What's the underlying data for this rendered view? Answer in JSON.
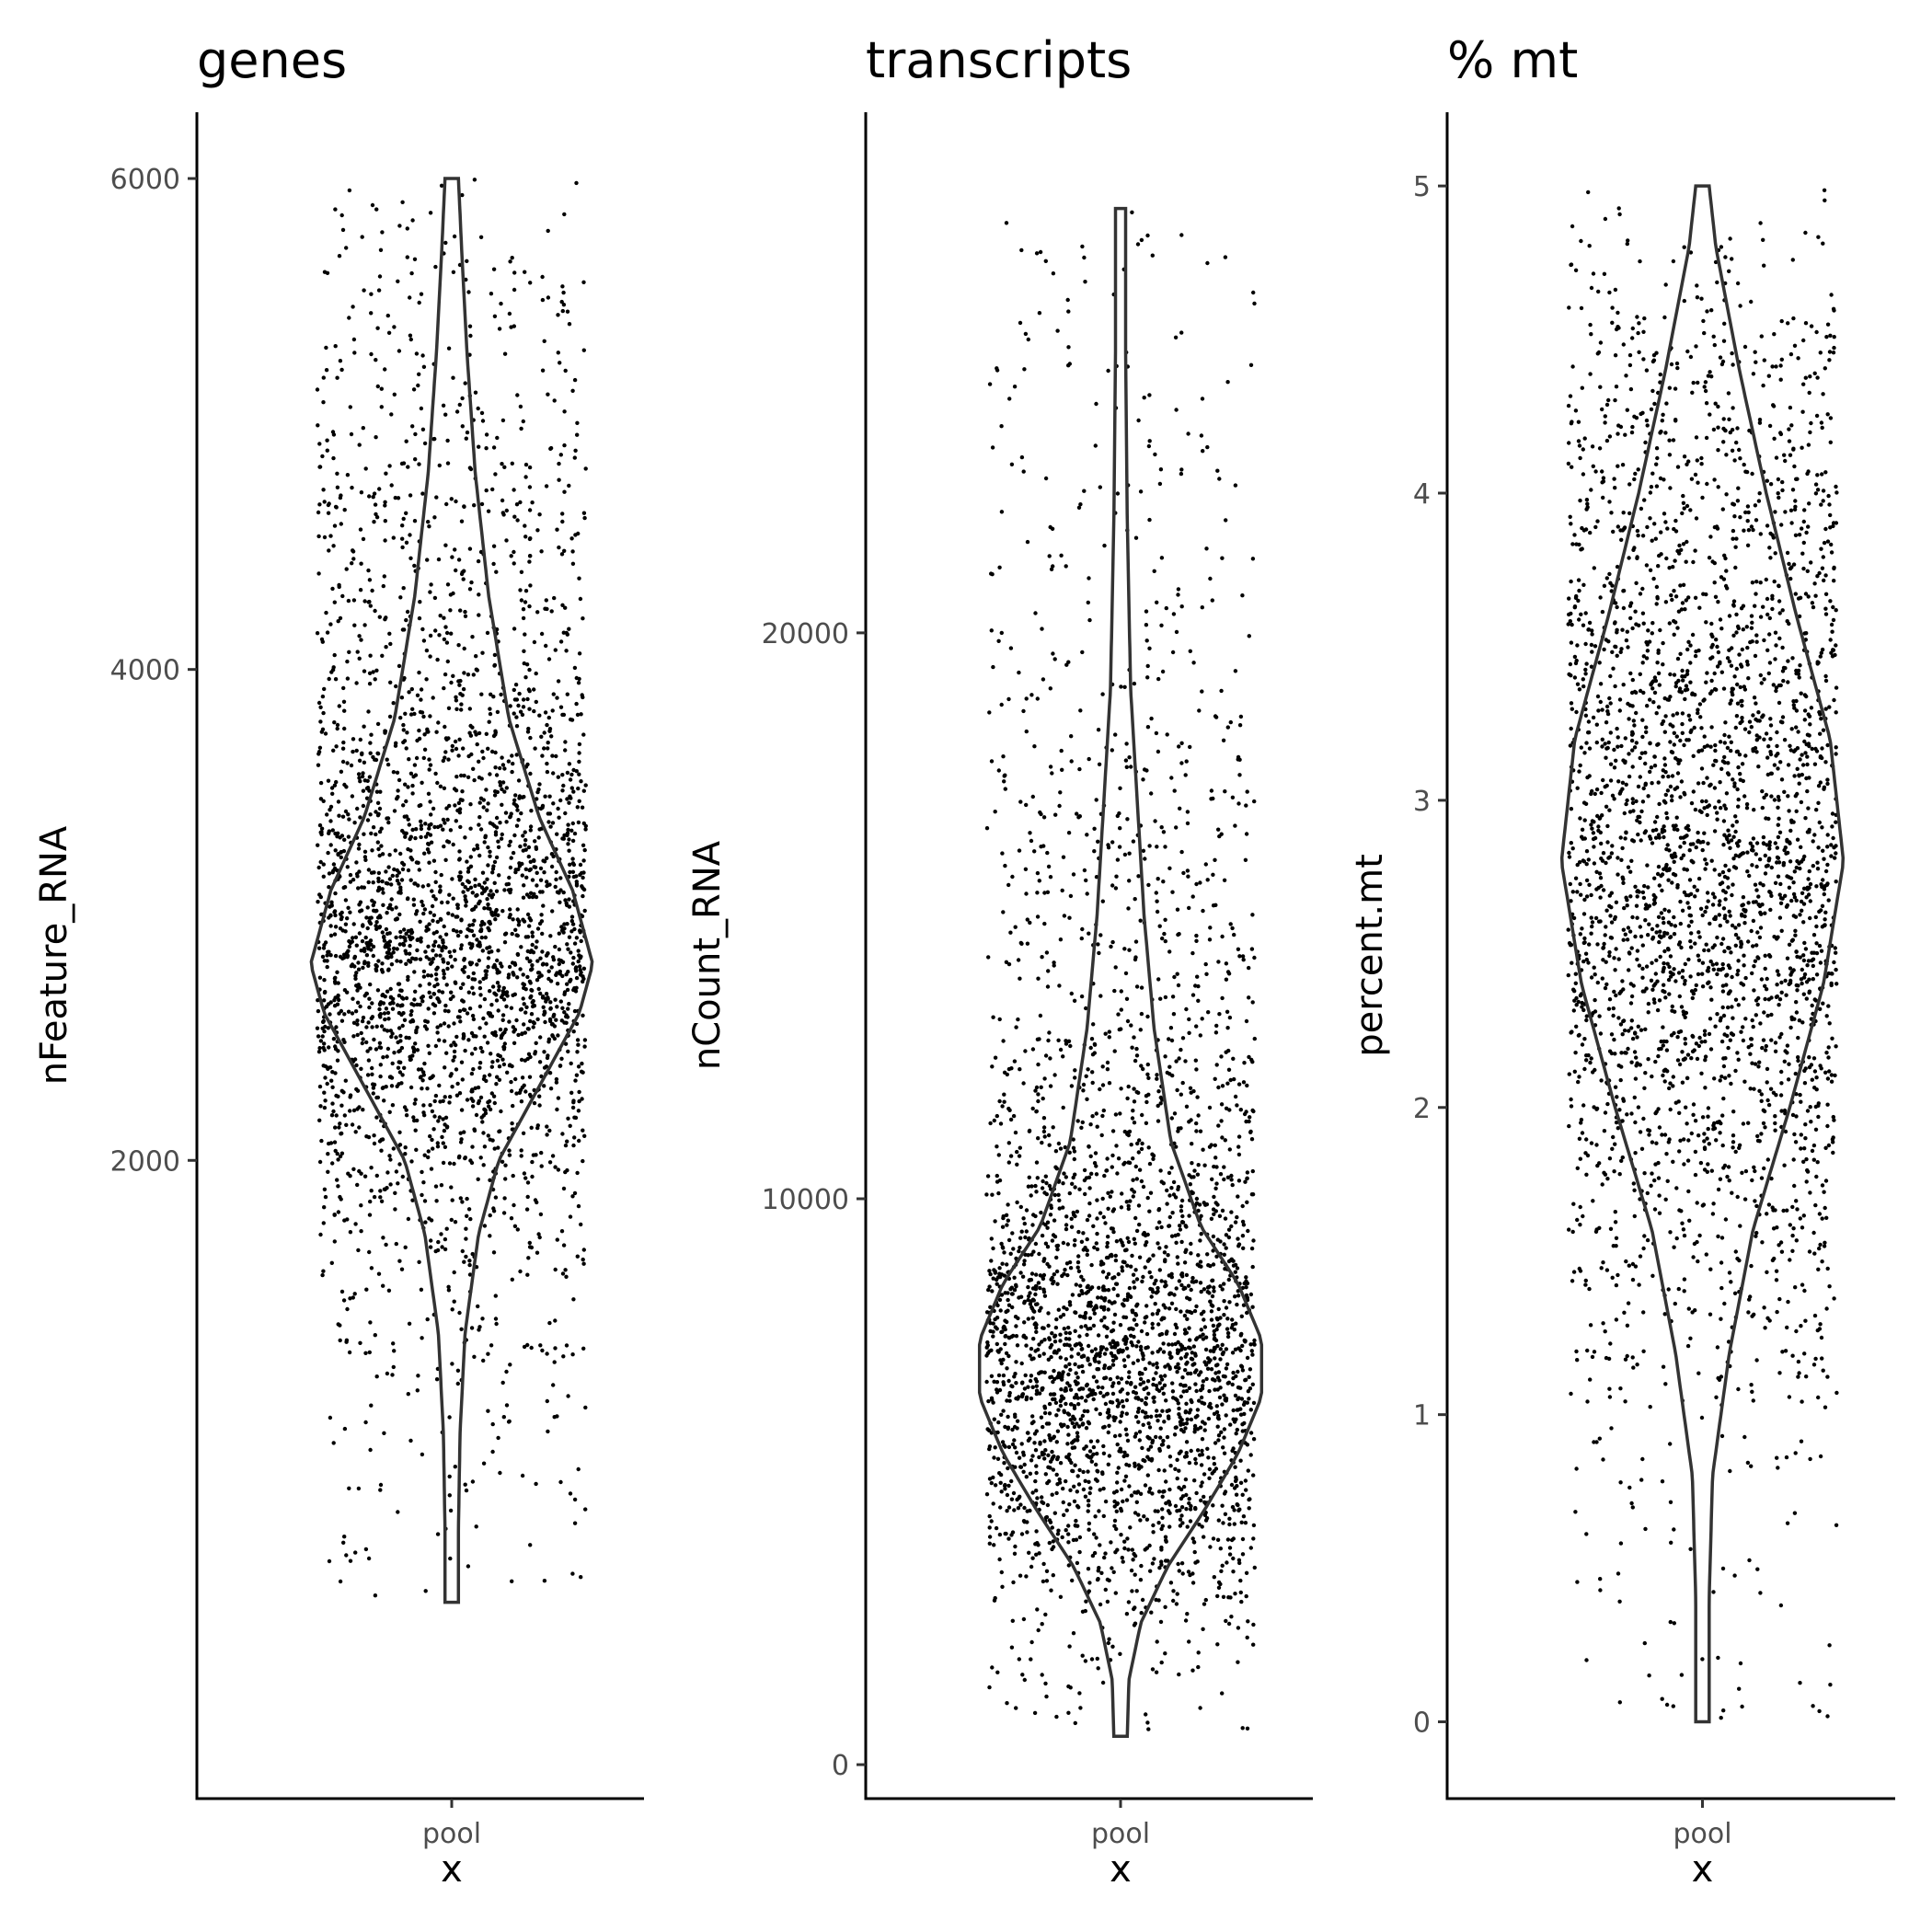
{
  "chart_data": [
    {
      "type": "violin",
      "title": "genes",
      "xlabel": "x",
      "ylabel": "nFeature_RNA",
      "categories": [
        "pool"
      ],
      "yticks": [
        2000,
        4000,
        6000
      ],
      "ylim": [
        -600,
        6270
      ],
      "data_range": [
        200,
        6000
      ],
      "points_shown": true,
      "approx_n_points": 3000,
      "density_profile": [
        {
          "y": 200,
          "half_width": 0.02
        },
        {
          "y": 500,
          "half_width": 0.02
        },
        {
          "y": 900,
          "half_width": 0.025
        },
        {
          "y": 1300,
          "half_width": 0.04
        },
        {
          "y": 1700,
          "half_width": 0.08
        },
        {
          "y": 2000,
          "half_width": 0.14
        },
        {
          "y": 2300,
          "half_width": 0.26
        },
        {
          "y": 2600,
          "half_width": 0.38
        },
        {
          "y": 2800,
          "half_width": 0.42
        },
        {
          "y": 3100,
          "half_width": 0.36
        },
        {
          "y": 3400,
          "half_width": 0.26
        },
        {
          "y": 3800,
          "half_width": 0.17
        },
        {
          "y": 4300,
          "half_width": 0.11
        },
        {
          "y": 4800,
          "half_width": 0.07
        },
        {
          "y": 5300,
          "half_width": 0.045
        },
        {
          "y": 5700,
          "half_width": 0.03
        },
        {
          "y": 6000,
          "half_width": 0.02
        }
      ]
    },
    {
      "type": "violin",
      "title": "transcripts",
      "xlabel": "x",
      "ylabel": "nCount_RNA",
      "categories": [
        "pool"
      ],
      "yticks": [
        0,
        10000,
        20000
      ],
      "ylim": [
        -600,
        29200
      ],
      "data_range": [
        500,
        27500
      ],
      "points_shown": true,
      "approx_n_points": 3000,
      "density_profile": [
        {
          "y": 500,
          "half_width": 0.02
        },
        {
          "y": 1500,
          "half_width": 0.025
        },
        {
          "y": 2500,
          "half_width": 0.06
        },
        {
          "y": 3500,
          "half_width": 0.14
        },
        {
          "y": 4500,
          "half_width": 0.25
        },
        {
          "y": 5500,
          "half_width": 0.35
        },
        {
          "y": 6500,
          "half_width": 0.42
        },
        {
          "y": 7500,
          "half_width": 0.42
        },
        {
          "y": 8500,
          "half_width": 0.35
        },
        {
          "y": 9500,
          "half_width": 0.24
        },
        {
          "y": 11000,
          "half_width": 0.15
        },
        {
          "y": 13000,
          "half_width": 0.1
        },
        {
          "y": 15000,
          "half_width": 0.07
        },
        {
          "y": 17000,
          "half_width": 0.05
        },
        {
          "y": 19000,
          "half_width": 0.03
        },
        {
          "y": 22000,
          "half_width": 0.02
        },
        {
          "y": 25000,
          "half_width": 0.015
        },
        {
          "y": 27500,
          "half_width": 0.015
        }
      ]
    },
    {
      "type": "violin",
      "title": "% mt",
      "xlabel": "x",
      "ylabel": "percent.mt",
      "categories": [
        "pool"
      ],
      "yticks": [
        0,
        1,
        2,
        3,
        4,
        5
      ],
      "ylim": [
        -0.25,
        5.24
      ],
      "data_range": [
        0,
        5
      ],
      "points_shown": true,
      "approx_n_points": 3000,
      "density_profile": [
        {
          "y": 0,
          "half_width": 0.02
        },
        {
          "y": 0.4,
          "half_width": 0.02
        },
        {
          "y": 0.8,
          "half_width": 0.03
        },
        {
          "y": 1.2,
          "half_width": 0.08
        },
        {
          "y": 1.6,
          "half_width": 0.15
        },
        {
          "y": 2.0,
          "half_width": 0.26
        },
        {
          "y": 2.4,
          "half_width": 0.36
        },
        {
          "y": 2.8,
          "half_width": 0.42
        },
        {
          "y": 3.2,
          "half_width": 0.38
        },
        {
          "y": 3.6,
          "half_width": 0.28
        },
        {
          "y": 4.0,
          "half_width": 0.19
        },
        {
          "y": 4.4,
          "half_width": 0.11
        },
        {
          "y": 4.8,
          "half_width": 0.04
        },
        {
          "y": 5.0,
          "half_width": 0.02
        }
      ]
    }
  ]
}
